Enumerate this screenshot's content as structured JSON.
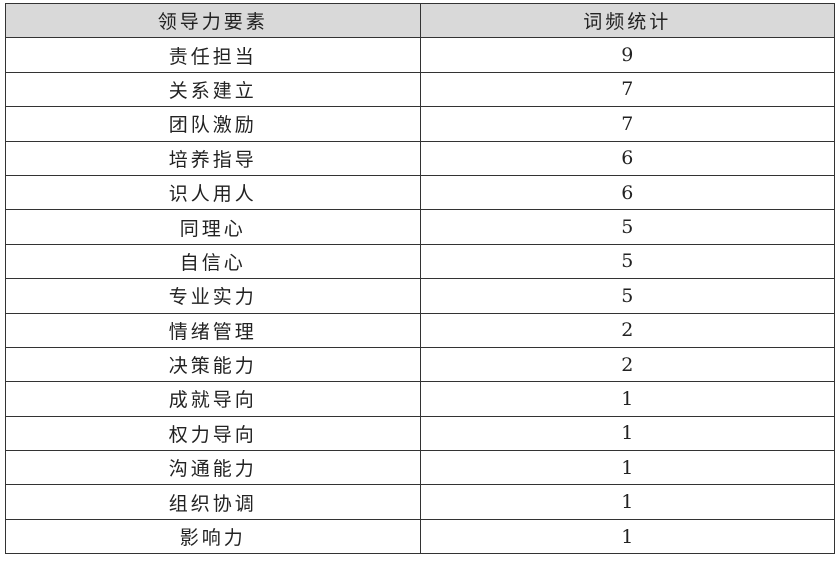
{
  "table": {
    "headers": [
      "领导力要素",
      "词频统计"
    ],
    "rows": [
      [
        "责任担当",
        "9"
      ],
      [
        "关系建立",
        "7"
      ],
      [
        "团队激励",
        "7"
      ],
      [
        "培养指导",
        "6"
      ],
      [
        "识人用人",
        "6"
      ],
      [
        "同理心",
        "5"
      ],
      [
        "自信心",
        "5"
      ],
      [
        "专业实力",
        "5"
      ],
      [
        "情绪管理",
        "2"
      ],
      [
        "决策能力",
        "2"
      ],
      [
        "成就导向",
        "1"
      ],
      [
        "权力导向",
        "1"
      ],
      [
        "沟通能力",
        "1"
      ],
      [
        "组织协调",
        "1"
      ],
      [
        "影响力",
        "1"
      ]
    ],
    "header_bg": "#d9d9d9"
  }
}
